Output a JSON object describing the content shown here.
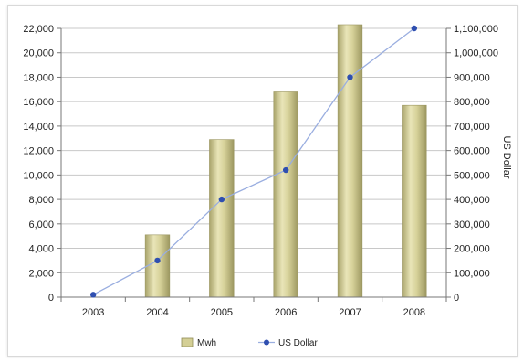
{
  "chart_data": {
    "type": "bar",
    "categories": [
      "2003",
      "2004",
      "2005",
      "2006",
      "2007",
      "2008"
    ],
    "series": [
      {
        "name": "Mwh",
        "type": "bar",
        "axis": "left",
        "values": [
          0,
          5100,
          12900,
          16800,
          22300,
          15700
        ]
      },
      {
        "name": "US Dollar",
        "type": "line",
        "axis": "right",
        "values": [
          10000,
          150000,
          400000,
          520000,
          900000,
          1100000
        ]
      }
    ],
    "ylim_left": [
      0,
      22000
    ],
    "ylim_right": [
      0,
      1100000
    ],
    "yticks_left": [
      "0",
      "2,000",
      "4,000",
      "6,000",
      "8,000",
      "10,000",
      "12,000",
      "14,000",
      "16,000",
      "18,000",
      "20,000",
      "22,000"
    ],
    "yticks_right": [
      "0",
      "100,000",
      "200,000",
      "300,000",
      "400,000",
      "500,000",
      "600,000",
      "700,000",
      "800,000",
      "900,000",
      "1,000,000",
      "1,100,000"
    ],
    "ylabel_right": "US Dollar",
    "legend_position": "bottom",
    "grid": true,
    "colors": {
      "bar": "#cfca8e",
      "bar_edge": "#9a9560",
      "line": "#9aaee0",
      "marker": "#2f4fb0"
    }
  }
}
